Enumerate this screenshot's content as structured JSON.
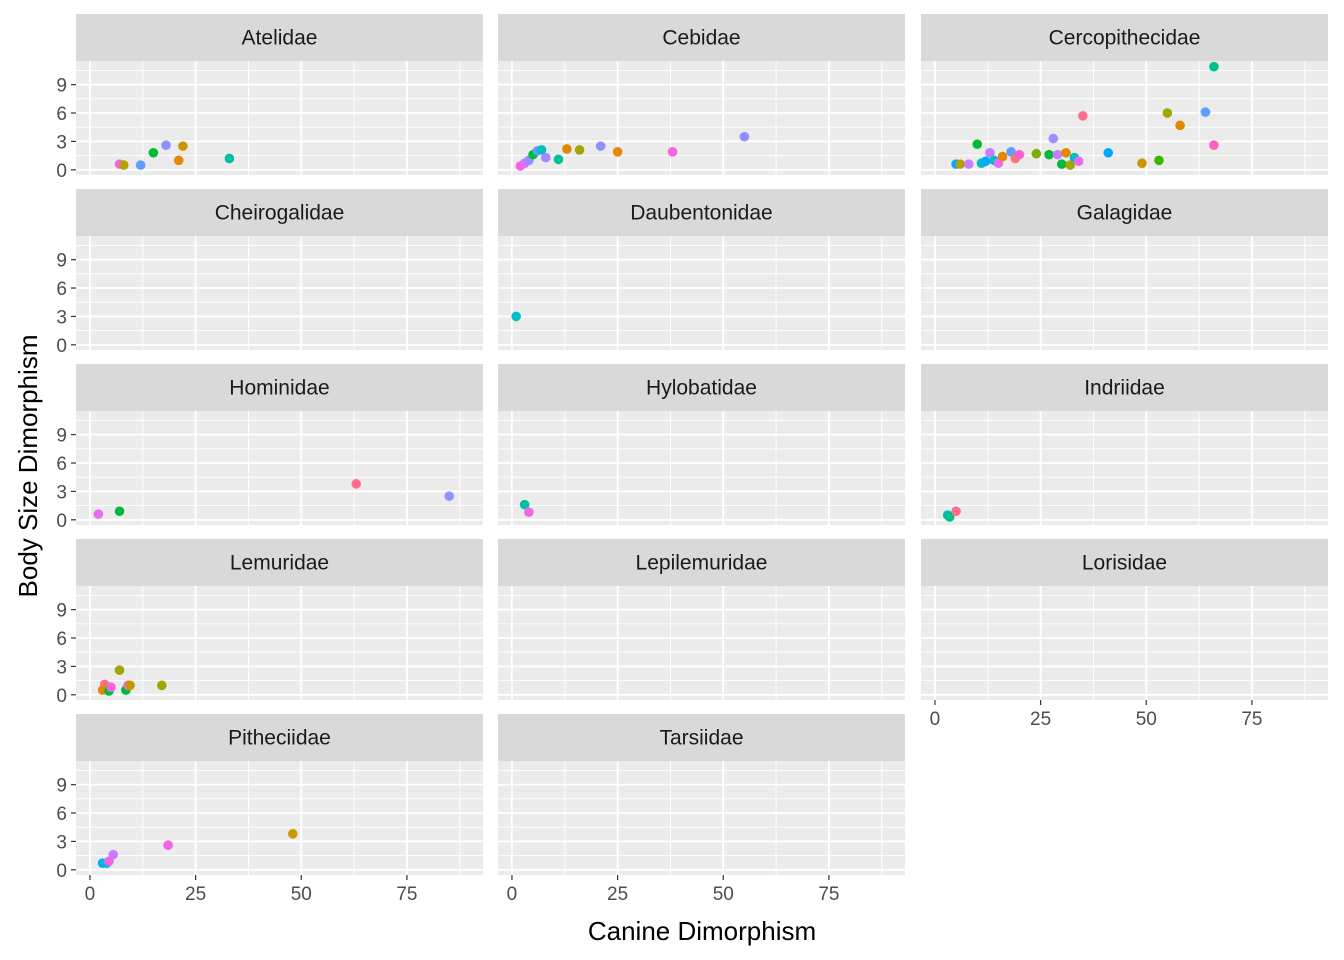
{
  "chart_data": {
    "type": "scatter",
    "xlabel": "Canine Dimorphism",
    "ylabel": "Body Size Dimorphism",
    "xlim": [
      -3.3,
      93
    ],
    "ylim": [
      -0.55,
      11.5
    ],
    "x_ticks": [
      0,
      25,
      50,
      75
    ],
    "y_ticks": [
      0,
      3,
      6,
      9
    ],
    "panel_background": "#ebebeb",
    "strip_background": "#d9d9d9",
    "grid_color": "#ffffff",
    "legend": "none",
    "panels": [
      {
        "title": "Atelidae",
        "points": [
          {
            "x": 7,
            "y": 0.6,
            "color": "#f564e3"
          },
          {
            "x": 8,
            "y": 0.5,
            "color": "#b79f00"
          },
          {
            "x": 12,
            "y": 0.5,
            "color": "#619cff"
          },
          {
            "x": 15,
            "y": 1.8,
            "color": "#00ba38"
          },
          {
            "x": 18,
            "y": 2.6,
            "color": "#8f91ff"
          },
          {
            "x": 21,
            "y": 1.0,
            "color": "#e58700"
          },
          {
            "x": 22,
            "y": 2.5,
            "color": "#c99800"
          },
          {
            "x": 33,
            "y": 1.2,
            "color": "#00bfa5"
          }
        ]
      },
      {
        "title": "Cebidae",
        "points": [
          {
            "x": 2,
            "y": 0.4,
            "color": "#f564e3"
          },
          {
            "x": 3,
            "y": 0.7,
            "color": "#e76bf3"
          },
          {
            "x": 4,
            "y": 1.0,
            "color": "#8f91ff"
          },
          {
            "x": 5,
            "y": 1.6,
            "color": "#00ba38"
          },
          {
            "x": 6,
            "y": 2.0,
            "color": "#619cff"
          },
          {
            "x": 7,
            "y": 2.1,
            "color": "#00bfc4"
          },
          {
            "x": 8,
            "y": 1.3,
            "color": "#a58aff"
          },
          {
            "x": 11,
            "y": 1.1,
            "color": "#00c19a"
          },
          {
            "x": 13,
            "y": 2.2,
            "color": "#e58700"
          },
          {
            "x": 16,
            "y": 2.1,
            "color": "#a3a500"
          },
          {
            "x": 21,
            "y": 2.5,
            "color": "#8f91ff"
          },
          {
            "x": 25,
            "y": 1.9,
            "color": "#e58700"
          },
          {
            "x": 38,
            "y": 1.9,
            "color": "#f564e3"
          },
          {
            "x": 55,
            "y": 3.5,
            "color": "#8f91ff"
          }
        ]
      },
      {
        "title": "Cercopithecidae",
        "points": [
          {
            "x": 5,
            "y": 0.6,
            "color": "#00a9ff"
          },
          {
            "x": 6,
            "y": 0.6,
            "color": "#b79f00"
          },
          {
            "x": 8,
            "y": 0.6,
            "color": "#c77cff"
          },
          {
            "x": 10,
            "y": 2.7,
            "color": "#00ba38"
          },
          {
            "x": 11,
            "y": 0.7,
            "color": "#00bfc4"
          },
          {
            "x": 12,
            "y": 0.9,
            "color": "#00a9ff"
          },
          {
            "x": 13,
            "y": 1.8,
            "color": "#c77cff"
          },
          {
            "x": 14,
            "y": 1.0,
            "color": "#00bfc4"
          },
          {
            "x": 15,
            "y": 0.7,
            "color": "#e76bf3"
          },
          {
            "x": 16,
            "y": 1.4,
            "color": "#e58700"
          },
          {
            "x": 18,
            "y": 1.9,
            "color": "#619cff"
          },
          {
            "x": 19,
            "y": 1.2,
            "color": "#f8766d"
          },
          {
            "x": 20,
            "y": 1.6,
            "color": "#fd61d1"
          },
          {
            "x": 24,
            "y": 1.7,
            "color": "#7cae00"
          },
          {
            "x": 27,
            "y": 1.6,
            "color": "#00ba38"
          },
          {
            "x": 28,
            "y": 3.3,
            "color": "#a58aff"
          },
          {
            "x": 29,
            "y": 1.6,
            "color": "#c77cff"
          },
          {
            "x": 30,
            "y": 0.6,
            "color": "#00ba38"
          },
          {
            "x": 31,
            "y": 1.8,
            "color": "#e58700"
          },
          {
            "x": 32,
            "y": 0.5,
            "color": "#a3a500"
          },
          {
            "x": 33,
            "y": 1.3,
            "color": "#00bfc4"
          },
          {
            "x": 34,
            "y": 0.9,
            "color": "#e76bf3"
          },
          {
            "x": 35,
            "y": 5.7,
            "color": "#ff6c91"
          },
          {
            "x": 41,
            "y": 1.8,
            "color": "#00a9ff"
          },
          {
            "x": 49,
            "y": 0.7,
            "color": "#c99800"
          },
          {
            "x": 53,
            "y": 1.0,
            "color": "#39b600"
          },
          {
            "x": 55,
            "y": 6.0,
            "color": "#a3a500"
          },
          {
            "x": 58,
            "y": 4.7,
            "color": "#e58700"
          },
          {
            "x": 64,
            "y": 6.1,
            "color": "#619cff"
          },
          {
            "x": 66,
            "y": 10.9,
            "color": "#00c08b"
          },
          {
            "x": 66,
            "y": 2.6,
            "color": "#ff62bc"
          }
        ]
      },
      {
        "title": "Cheirogalidae",
        "points": []
      },
      {
        "title": "Daubentonidae",
        "points": [
          {
            "x": 1,
            "y": 3.0,
            "color": "#00bfc4"
          }
        ]
      },
      {
        "title": "Galagidae",
        "points": []
      },
      {
        "title": "Hominidae",
        "points": [
          {
            "x": 2,
            "y": 0.6,
            "color": "#e76bf3"
          },
          {
            "x": 7,
            "y": 0.9,
            "color": "#00ba38"
          },
          {
            "x": 63,
            "y": 3.8,
            "color": "#ff6c91"
          },
          {
            "x": 85,
            "y": 2.5,
            "color": "#8f91ff"
          }
        ]
      },
      {
        "title": "Hylobatidae",
        "points": [
          {
            "x": 3,
            "y": 1.6,
            "color": "#00bfa5"
          },
          {
            "x": 4,
            "y": 0.8,
            "color": "#f564e3"
          }
        ]
      },
      {
        "title": "Indriidae",
        "points": [
          {
            "x": 3,
            "y": 0.5,
            "color": "#00bfc4"
          },
          {
            "x": 3.5,
            "y": 0.3,
            "color": "#00c08b"
          },
          {
            "x": 5,
            "y": 0.9,
            "color": "#ff6c91"
          }
        ]
      },
      {
        "title": "Lemuridae",
        "points": [
          {
            "x": 3,
            "y": 0.5,
            "color": "#e58700"
          },
          {
            "x": 3.5,
            "y": 1.1,
            "color": "#ff6c91"
          },
          {
            "x": 4,
            "y": 0.7,
            "color": "#c99800"
          },
          {
            "x": 4.5,
            "y": 0.4,
            "color": "#00ba38"
          },
          {
            "x": 5,
            "y": 0.8,
            "color": "#f564e3"
          },
          {
            "x": 7,
            "y": 2.6,
            "color": "#a3a500"
          },
          {
            "x": 8.5,
            "y": 0.5,
            "color": "#00ba38"
          },
          {
            "x": 9,
            "y": 1.0,
            "color": "#e76bf3"
          },
          {
            "x": 9.5,
            "y": 1.0,
            "color": "#c99800"
          },
          {
            "x": 17,
            "y": 1.0,
            "color": "#a3a500"
          }
        ]
      },
      {
        "title": "Lepilemuridae",
        "points": []
      },
      {
        "title": "Lorisidae",
        "points": []
      },
      {
        "title": "Pitheciidae",
        "points": [
          {
            "x": 3,
            "y": 0.7,
            "color": "#00a9ff"
          },
          {
            "x": 4,
            "y": 0.7,
            "color": "#00bfc4"
          },
          {
            "x": 4.5,
            "y": 0.9,
            "color": "#f564e3"
          },
          {
            "x": 5.5,
            "y": 1.6,
            "color": "#c77cff"
          },
          {
            "x": 18.5,
            "y": 2.6,
            "color": "#f564e3"
          },
          {
            "x": 48,
            "y": 3.8,
            "color": "#c99800"
          }
        ]
      },
      {
        "title": "Tarsiidae",
        "points": []
      }
    ]
  }
}
